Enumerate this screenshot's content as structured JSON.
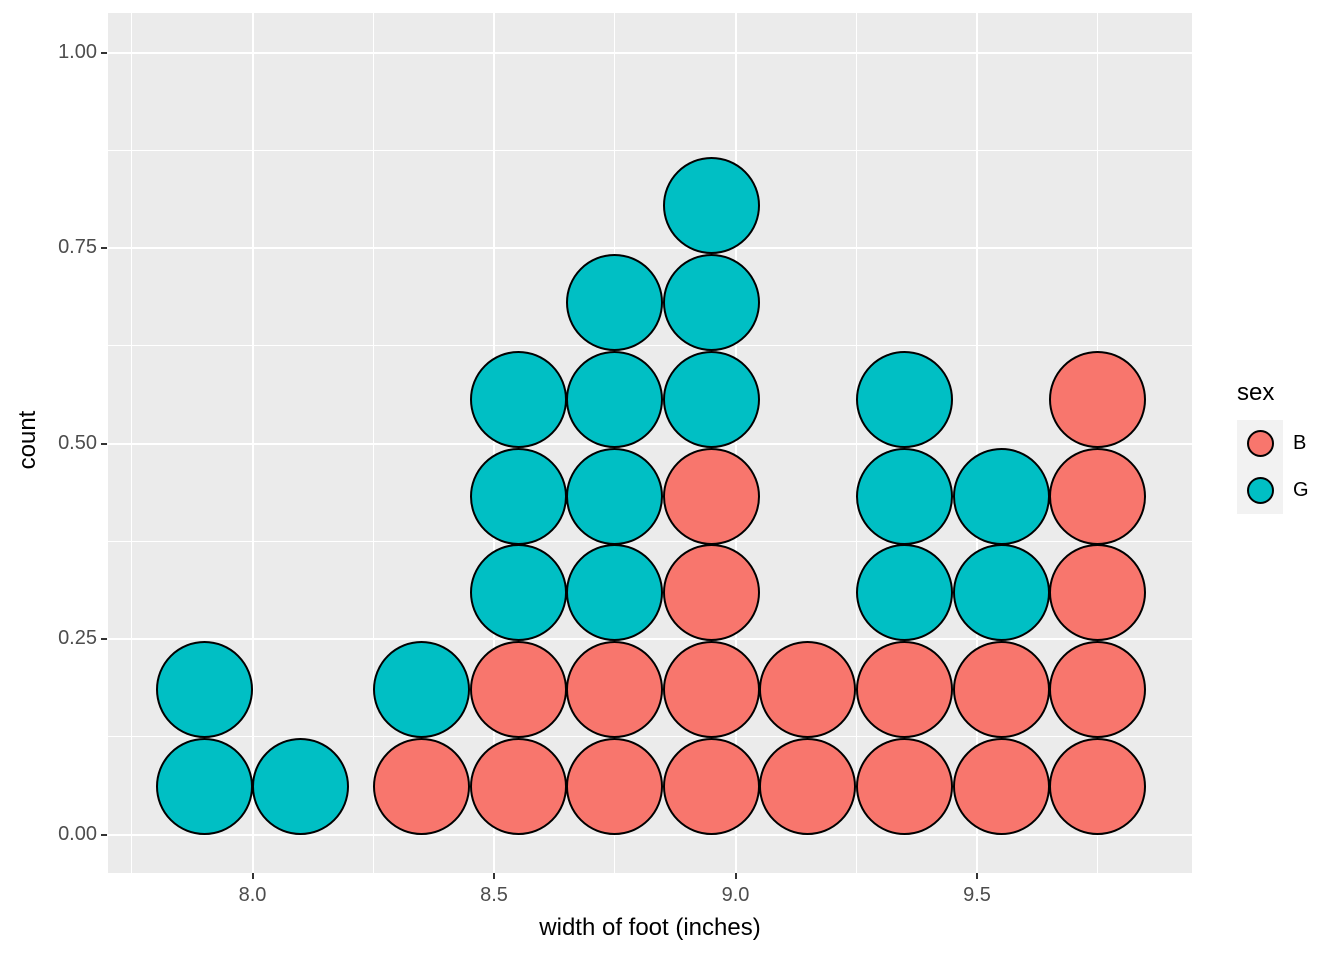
{
  "chart_data": {
    "type": "dotplot",
    "xlabel": "width of foot (inches)",
    "ylabel": "count",
    "x_ticks": [
      8.0,
      8.5,
      9.0,
      9.5
    ],
    "x_tick_labels": [
      "8.0",
      "8.5",
      "9.0",
      "9.5"
    ],
    "x_minor_ticks": [
      7.75,
      8.25,
      8.75,
      9.25,
      9.75
    ],
    "y_ticks": [
      0.0,
      0.25,
      0.5,
      0.75,
      1.0
    ],
    "y_tick_labels": [
      "0.00",
      "0.25",
      "0.50",
      "0.75",
      "1.00"
    ],
    "y_minor_ticks": [
      0.125,
      0.375,
      0.625,
      0.875
    ],
    "xlim": [
      7.7,
      9.95
    ],
    "ylim": [
      0,
      1.05
    ],
    "grid": "on",
    "panel_bg": "#EBEBEB",
    "grid_color": "#FFFFFF",
    "tick_label_color": "#4D4D4D",
    "dot_outline_color": "#000000",
    "series_colors": {
      "B": "#F8766D",
      "G": "#00BFC4"
    },
    "stacks": [
      {
        "x": 7.9,
        "dots": [
          "G",
          "G"
        ]
      },
      {
        "x": 8.1,
        "dots": [
          "G"
        ]
      },
      {
        "x": 8.35,
        "dots": [
          "B",
          "G"
        ]
      },
      {
        "x": 8.55,
        "dots": [
          "B",
          "B",
          "G",
          "G",
          "G"
        ]
      },
      {
        "x": 8.75,
        "dots": [
          "B",
          "B",
          "G",
          "G",
          "G",
          "G"
        ]
      },
      {
        "x": 8.95,
        "dots": [
          "B",
          "B",
          "B",
          "B",
          "G",
          "G",
          "G"
        ]
      },
      {
        "x": 9.15,
        "dots": [
          "B",
          "B"
        ]
      },
      {
        "x": 9.35,
        "dots": [
          "B",
          "B",
          "G",
          "G",
          "G"
        ]
      },
      {
        "x": 9.55,
        "dots": [
          "B",
          "B",
          "G",
          "G"
        ]
      },
      {
        "x": 9.75,
        "dots": [
          "B",
          "B",
          "B",
          "B",
          "B"
        ]
      }
    ],
    "legend": {
      "title": "sex",
      "position": "right",
      "entries": [
        {
          "label": "B",
          "color": "#F8766D"
        },
        {
          "label": "G",
          "color": "#00BFC4"
        }
      ]
    }
  }
}
